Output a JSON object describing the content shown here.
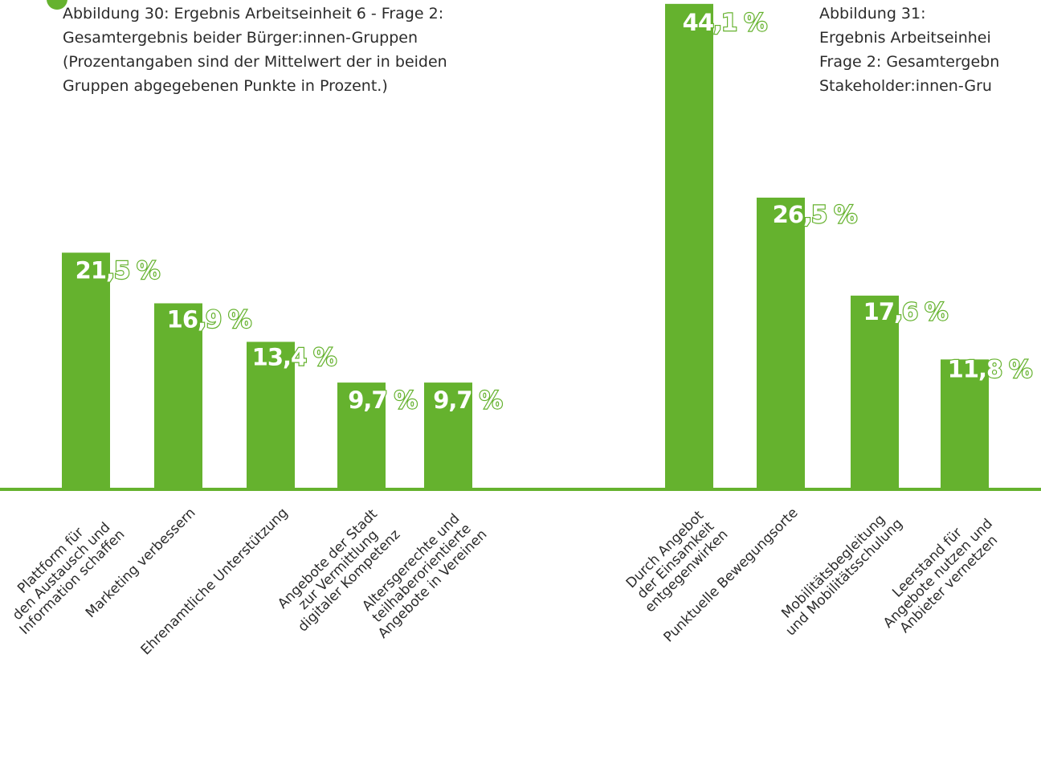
{
  "colors": {
    "bar": "#65b22e",
    "axis": "#65b22e",
    "label_fill": "#ffffff",
    "label_stroke": "#65b22e",
    "text": "#2b2b2b"
  },
  "caption_left": {
    "lines": [
      "Abbildung 30: Ergebnis Arbeitseinheit 6 - Frage 2:",
      "Gesamtergebnis beider Bürger:innen-Gruppen",
      "(Prozentangaben sind der Mittelwert der in beiden",
      "Gruppen abgegebenen Punkte in Prozent.)"
    ]
  },
  "caption_right": {
    "lines": [
      "Abbildung 31:",
      "Ergebnis Arbeitseinhei",
      "Frage 2: Gesamtergebn",
      "Stakeholder:innen-Gru"
    ]
  },
  "chart_data": [
    {
      "type": "bar",
      "categories": [
        "Plattform für den Austausch und Information schaffen",
        "Marketing verbessern",
        "Ehrenamtliche Unterstützung",
        "Angebote der Stadt zur Vermittlung digitaler Kompetenz",
        "Altersgerechte und teilhaberorientierte Angebote in Vereinen"
      ],
      "category_lines": [
        [
          "Plattform für",
          "den Austausch und",
          "Information schaffen"
        ],
        [
          "Marketing verbessern"
        ],
        [
          "Ehrenamtliche Unterstützung"
        ],
        [
          "Angebote der Stadt",
          "zur Vermittlung",
          "digitaler Kompetenz"
        ],
        [
          "Altersgerechte und",
          "teilhaberorientierte",
          "Angebote in Vereinen"
        ]
      ],
      "values": [
        21.5,
        16.9,
        13.4,
        9.7,
        9.7
      ],
      "value_labels": [
        "21,5 %",
        "16,9 %",
        "13,4 %",
        "9,7 %",
        "9,7 %"
      ],
      "ylim": [
        0,
        50
      ],
      "grid": false
    },
    {
      "type": "bar",
      "categories": [
        "Durch Angebot der Einsamkeit entgegenwirken",
        "Punktuelle Bewegungsorte",
        "Mobilitätsbegleitung und Mobilitätsschulung",
        "Leerstand für Angebote nutzen und Anbieter vernetzen"
      ],
      "category_lines": [
        [
          "Durch Angebot",
          "der Einsamkeit",
          "entgegenwirken"
        ],
        [
          "Punktuelle Bewegungsorte"
        ],
        [
          "Mobilitätsbegleitung",
          "und Mobilitätsschulung"
        ],
        [
          "Leerstand für",
          "Angebote nutzen und",
          "Anbieter vernetzen"
        ]
      ],
      "values": [
        44.1,
        26.5,
        17.6,
        11.8
      ],
      "value_labels": [
        "44,1 %",
        "26,5 %",
        "17,6 %",
        "11,8 %"
      ],
      "ylim": [
        0,
        50
      ],
      "grid": false
    }
  ]
}
